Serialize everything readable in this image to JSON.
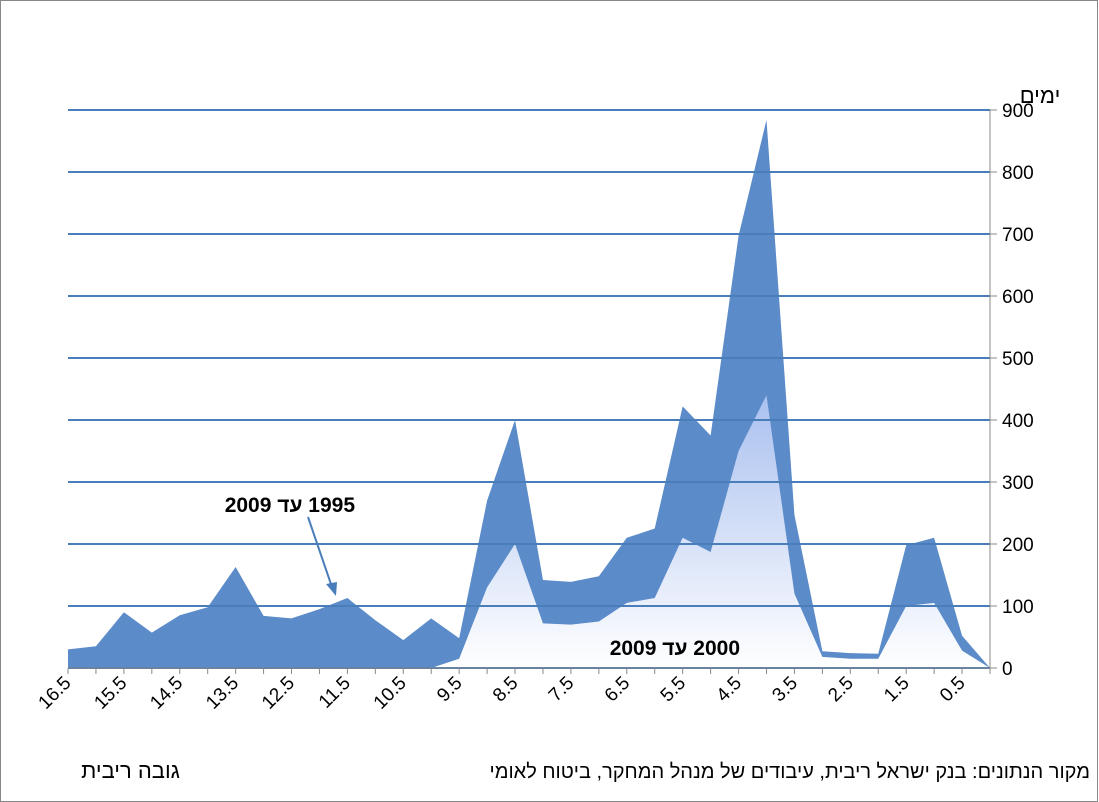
{
  "chart_data": {
    "type": "area",
    "y_label": "ימים",
    "x_label": "גובה ריבית",
    "source": "מקור הנתונים: בנק ישראל ריבית, עיבודים של מנהל המחקר, ביטוח לאומי",
    "categories": [
      "16.5",
      null,
      "15.5",
      null,
      "14.5",
      null,
      "13.5",
      null,
      "12.5",
      null,
      "11.5",
      null,
      "10.5",
      null,
      "9.5",
      null,
      "8.5",
      null,
      "7.5",
      null,
      "6.5",
      null,
      "5.5",
      null,
      "4.5",
      null,
      "3.5",
      null,
      "2.5",
      null,
      "1.5",
      null,
      "0.5",
      null
    ],
    "series": [
      {
        "name": "1995 עד 2009",
        "color": "#5b8bc9",
        "values": [
          30,
          35,
          90,
          57,
          85,
          98,
          163,
          84,
          80,
          95,
          113,
          77,
          45,
          80,
          48,
          270,
          400,
          142,
          139,
          148,
          210,
          225,
          422,
          375,
          697,
          884,
          247,
          27,
          24,
          23,
          198,
          210,
          52,
          0
        ]
      },
      {
        "name": "2000 עד 2009",
        "color": "#a9c0ef",
        "values": [
          null,
          null,
          null,
          null,
          null,
          null,
          null,
          null,
          null,
          null,
          null,
          null,
          null,
          0,
          15,
          130,
          200,
          72,
          70,
          75,
          105,
          113,
          210,
          187,
          350,
          440,
          120,
          18,
          15,
          15,
          100,
          105,
          28,
          0
        ]
      }
    ],
    "ylim": [
      0,
      900
    ],
    "yticks": [
      0,
      100,
      200,
      300,
      400,
      500,
      600,
      700,
      800,
      900
    ],
    "grid": true
  }
}
